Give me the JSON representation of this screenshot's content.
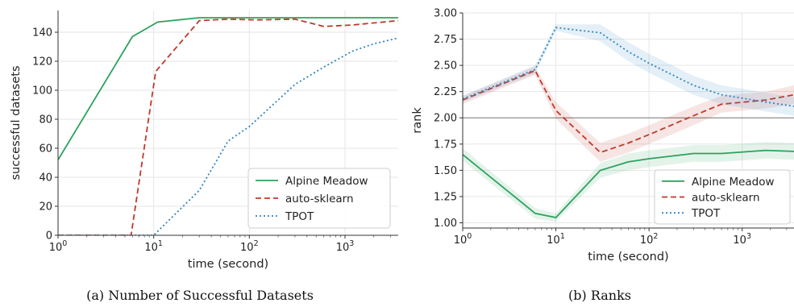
{
  "chart_data": [
    {
      "type": "line",
      "caption": "(a) Number of Successful Datasets",
      "xlabel": "time (second)",
      "ylabel": "successful datasets",
      "xscale": "log",
      "xlim": [
        1,
        3600
      ],
      "ylim": [
        0,
        155
      ],
      "xticks": [
        1,
        10,
        100,
        1000
      ],
      "xtick_labels": [
        {
          "base": "10",
          "exp": "0"
        },
        {
          "base": "10",
          "exp": "1"
        },
        {
          "base": "10",
          "exp": "2"
        },
        {
          "base": "10",
          "exp": "3"
        }
      ],
      "yticks": [
        0,
        20,
        40,
        60,
        80,
        100,
        120,
        140
      ],
      "ytick_labels": [
        "0",
        "20",
        "40",
        "60",
        "80",
        "100",
        "120",
        "140"
      ],
      "grid": true,
      "legend_position": "lower-right",
      "series": [
        {
          "name": "Alpine Meadow",
          "color": "#2ca25f",
          "dash": "solid",
          "points": [
            [
              1,
              52
            ],
            [
              6,
              137
            ],
            [
              11,
              147
            ],
            [
              30,
              150
            ],
            [
              60,
              150
            ],
            [
              100,
              150
            ],
            [
              300,
              150
            ],
            [
              600,
              150
            ],
            [
              3600,
              150
            ]
          ]
        },
        {
          "name": "auto-sklearn",
          "color": "#c0392b",
          "dash": "dashed",
          "points": [
            [
              1,
              0
            ],
            [
              5.8,
              0
            ],
            [
              10.5,
              113
            ],
            [
              30,
              148
            ],
            [
              60,
              149
            ],
            [
              120,
              148.5
            ],
            [
              300,
              149
            ],
            [
              600,
              144
            ],
            [
              1200,
              145
            ],
            [
              3600,
              148
            ]
          ]
        },
        {
          "name": "TPOT",
          "color": "#2e86c1",
          "dash": "dotted",
          "points": [
            [
              1,
              0
            ],
            [
              10,
              0
            ],
            [
              30,
              31
            ],
            [
              60,
              65
            ],
            [
              100,
              75
            ],
            [
              300,
              104
            ],
            [
              600,
              116
            ],
            [
              1200,
              127
            ],
            [
              2000,
              132
            ],
            [
              3600,
              136
            ]
          ]
        }
      ]
    },
    {
      "type": "line",
      "caption": "(b) Ranks",
      "xlabel": "time (second)",
      "ylabel": "rank",
      "xscale": "log",
      "xlim": [
        1,
        3600
      ],
      "ylim": [
        0.95,
        3.0
      ],
      "xticks": [
        1,
        10,
        100,
        1000
      ],
      "xtick_labels": [
        {
          "base": "10",
          "exp": "0"
        },
        {
          "base": "10",
          "exp": "1"
        },
        {
          "base": "10",
          "exp": "2"
        },
        {
          "base": "10",
          "exp": "3"
        }
      ],
      "yticks": [
        1.0,
        1.25,
        1.5,
        1.75,
        2.0,
        2.25,
        2.5,
        2.75,
        3.0
      ],
      "ytick_labels": [
        "1.00",
        "1.25",
        "1.50",
        "1.75",
        "2.00",
        "2.25",
        "2.50",
        "2.75",
        "3.00"
      ],
      "grid": true,
      "reference_line": 2.0,
      "legend_position": "lower-right",
      "series": [
        {
          "name": "Alpine Meadow",
          "color": "#2ca25f",
          "dash": "solid",
          "points": [
            [
              1,
              1.65
            ],
            [
              6,
              1.09
            ],
            [
              10,
              1.05
            ],
            [
              30,
              1.5
            ],
            [
              60,
              1.58
            ],
            [
              100,
              1.61
            ],
            [
              300,
              1.66
            ],
            [
              600,
              1.66
            ],
            [
              1800,
              1.69
            ],
            [
              3600,
              1.68
            ]
          ],
          "band": [
            0.06,
            0.05,
            0.04,
            0.07,
            0.08,
            0.08,
            0.08,
            0.08,
            0.08,
            0.08
          ]
        },
        {
          "name": "auto-sklearn",
          "color": "#c0392b",
          "dash": "dashed",
          "points": [
            [
              1,
              2.17
            ],
            [
              6,
              2.45
            ],
            [
              10,
              2.07
            ],
            [
              30,
              1.67
            ],
            [
              60,
              1.76
            ],
            [
              100,
              1.84
            ],
            [
              300,
              2.02
            ],
            [
              600,
              2.13
            ],
            [
              1800,
              2.17
            ],
            [
              3600,
              2.22
            ]
          ],
          "band": [
            0.04,
            0.04,
            0.08,
            0.09,
            0.09,
            0.09,
            0.09,
            0.08,
            0.08,
            0.09
          ]
        },
        {
          "name": "TPOT",
          "color": "#2e86c1",
          "dash": "dotted",
          "points": [
            [
              1,
              2.18
            ],
            [
              6,
              2.46
            ],
            [
              10,
              2.86
            ],
            [
              30,
              2.81
            ],
            [
              60,
              2.63
            ],
            [
              100,
              2.52
            ],
            [
              300,
              2.31
            ],
            [
              600,
              2.22
            ],
            [
              1800,
              2.15
            ],
            [
              3600,
              2.11
            ]
          ],
          "band": [
            0.03,
            0.04,
            0.03,
            0.08,
            0.09,
            0.09,
            0.09,
            0.09,
            0.09,
            0.09
          ]
        }
      ]
    }
  ]
}
